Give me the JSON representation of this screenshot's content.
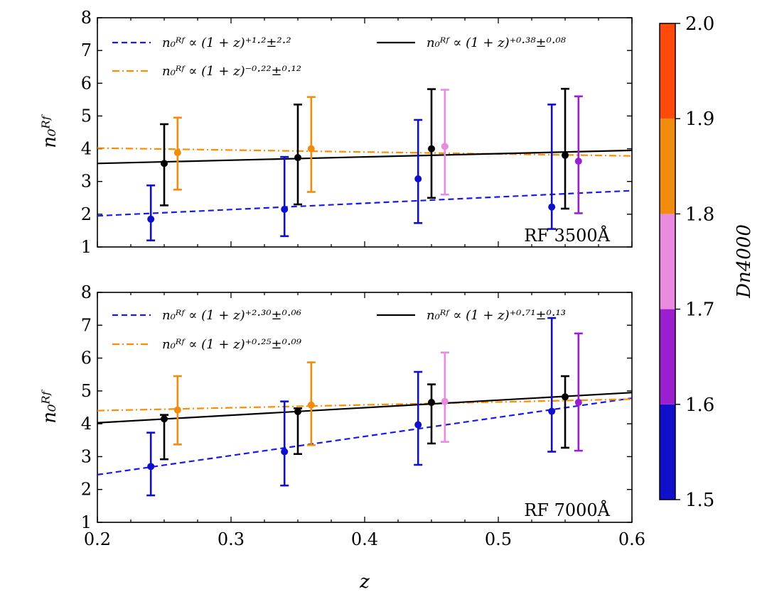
{
  "chart_data": {
    "type": "scatter",
    "xlabel": "z",
    "xlim": [
      0.2,
      0.6
    ],
    "xticks": [
      "0.2",
      "0.3",
      "0.4",
      "0.5",
      "0.6"
    ],
    "ylim": [
      1,
      8
    ],
    "yticks": [
      "1",
      "2",
      "3",
      "4",
      "5",
      "6",
      "7",
      "8"
    ],
    "ylabel": "n₀ᴿᶠ",
    "panels": [
      {
        "panel_label": "RF 3500Å",
        "fits": [
          {
            "name": "blue",
            "color": "#1a1ae6",
            "style": "dashed",
            "label": "n₀ᴿᶠ ∝ (1 + z)⁺¹·²±²·²",
            "x": [
              0.2,
              0.6
            ],
            "y": [
              1.95,
              2.72
            ]
          },
          {
            "name": "orange",
            "color": "#ff8c00",
            "style": "dashdot",
            "label": "n₀ᴿᶠ ∝ (1 + z)⁻⁰·²²±⁰·¹²",
            "x": [
              0.2,
              0.6
            ],
            "y": [
              4.02,
              3.78
            ]
          },
          {
            "name": "black",
            "color": "#000000",
            "style": "solid",
            "label": "n₀ᴿᶠ ∝ (1 + z)⁺⁰·³⁸±⁰·⁰⁸",
            "x": [
              0.2,
              0.6
            ],
            "y": [
              3.55,
              3.95
            ]
          }
        ],
        "points": [
          {
            "x": 0.24,
            "y": 1.85,
            "low": 1.2,
            "high": 2.88,
            "color": "#1010cc"
          },
          {
            "x": 0.25,
            "y": 3.55,
            "low": 2.27,
            "high": 4.75,
            "color": "#000000"
          },
          {
            "x": 0.26,
            "y": 3.88,
            "low": 2.75,
            "high": 4.95,
            "color": "#f28c0f"
          },
          {
            "x": 0.34,
            "y": 2.15,
            "low": 1.33,
            "high": 3.75,
            "color": "#1010cc"
          },
          {
            "x": 0.35,
            "y": 3.73,
            "low": 2.3,
            "high": 5.35,
            "color": "#000000"
          },
          {
            "x": 0.36,
            "y": 4.0,
            "low": 2.68,
            "high": 5.58,
            "color": "#f28c0f"
          },
          {
            "x": 0.44,
            "y": 3.08,
            "low": 1.73,
            "high": 4.88,
            "color": "#1010cc"
          },
          {
            "x": 0.45,
            "y": 4.0,
            "low": 2.5,
            "high": 5.82,
            "color": "#000000"
          },
          {
            "x": 0.46,
            "y": 4.07,
            "low": 2.6,
            "high": 5.8,
            "color": "#e98ce0"
          },
          {
            "x": 0.54,
            "y": 2.22,
            "low": 1.55,
            "high": 5.35,
            "color": "#1010cc"
          },
          {
            "x": 0.55,
            "y": 3.8,
            "low": 2.17,
            "high": 5.83,
            "color": "#000000"
          },
          {
            "x": 0.56,
            "y": 3.62,
            "low": 2.03,
            "high": 5.6,
            "color": "#9b1fd0"
          }
        ]
      },
      {
        "panel_label": "RF 7000Å",
        "fits": [
          {
            "name": "blue",
            "color": "#1a1ae6",
            "style": "dashed",
            "label": "n₀ᴿᶠ ∝ (1 + z)⁺²·³⁰±⁰·⁰⁶",
            "x": [
              0.2,
              0.6
            ],
            "y": [
              2.45,
              4.78
            ]
          },
          {
            "name": "orange",
            "color": "#ff8c00",
            "style": "dashdot",
            "label": "n₀ᴿᶠ ∝ (1 + z)⁺⁰·²⁵±⁰·⁰⁹",
            "x": [
              0.2,
              0.6
            ],
            "y": [
              4.4,
              4.75
            ]
          },
          {
            "name": "black",
            "color": "#000000",
            "style": "solid",
            "label": "n₀ᴿᶠ ∝ (1 + z)⁺⁰·⁷¹±⁰·¹³",
            "x": [
              0.2,
              0.6
            ],
            "y": [
              4.03,
              4.95
            ]
          }
        ],
        "points": [
          {
            "x": 0.24,
            "y": 2.7,
            "low": 1.82,
            "high": 3.73,
            "color": "#1010cc"
          },
          {
            "x": 0.25,
            "y": 4.15,
            "low": 2.92,
            "high": 4.27,
            "color": "#000000"
          },
          {
            "x": 0.26,
            "y": 4.42,
            "low": 3.37,
            "high": 5.45,
            "color": "#f28c0f"
          },
          {
            "x": 0.34,
            "y": 3.15,
            "low": 2.12,
            "high": 4.68,
            "color": "#1010cc"
          },
          {
            "x": 0.35,
            "y": 4.37,
            "low": 3.08,
            "high": 4.47,
            "color": "#000000"
          },
          {
            "x": 0.36,
            "y": 4.57,
            "low": 3.35,
            "high": 5.87,
            "color": "#f28c0f"
          },
          {
            "x": 0.44,
            "y": 3.97,
            "low": 2.75,
            "high": 5.58,
            "color": "#1010cc"
          },
          {
            "x": 0.45,
            "y": 4.65,
            "low": 3.4,
            "high": 5.2,
            "color": "#000000"
          },
          {
            "x": 0.46,
            "y": 4.68,
            "low": 3.45,
            "high": 6.17,
            "color": "#e98ce0"
          },
          {
            "x": 0.54,
            "y": 4.38,
            "low": 3.15,
            "high": 7.22,
            "color": "#1010cc"
          },
          {
            "x": 0.55,
            "y": 4.82,
            "low": 3.27,
            "high": 5.45,
            "color": "#000000"
          },
          {
            "x": 0.56,
            "y": 4.65,
            "low": 3.18,
            "high": 6.75,
            "color": "#9b1fd0"
          }
        ]
      }
    ],
    "colorbar": {
      "label": "Dn4000",
      "range": [
        1.5,
        2.0
      ],
      "ticks": [
        "1.5",
        "1.6",
        "1.7",
        "1.8",
        "1.9",
        "2.0"
      ],
      "segments": [
        {
          "from": 1.5,
          "to": 1.6,
          "color": "#1010cc"
        },
        {
          "from": 1.6,
          "to": 1.7,
          "color": "#9b1fd0"
        },
        {
          "from": 1.7,
          "to": 1.8,
          "color": "#e98ce0"
        },
        {
          "from": 1.8,
          "to": 1.9,
          "color": "#f28c0f"
        },
        {
          "from": 1.9,
          "to": 2.0,
          "color": "#ff4a0a"
        }
      ]
    }
  }
}
